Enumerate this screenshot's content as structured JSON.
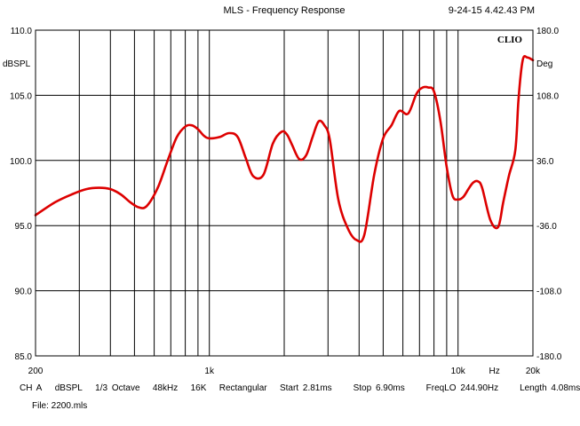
{
  "header": {
    "title": "MLS - Frequency Response",
    "timestamp": "9-24-15 4.42.43 PM"
  },
  "chart_data": {
    "type": "line",
    "brand": "CLIO",
    "x_scale": "log",
    "xlim": [
      200,
      20000
    ],
    "ylim_left": [
      85.0,
      110.0
    ],
    "ylim_right": [
      -180.0,
      180.0
    ],
    "left_unit": "dBSPL",
    "right_unit": "Deg",
    "x_unit": "Hz",
    "grid": true,
    "left_tick_labels": [
      "110.0",
      "105.0",
      "100.0",
      "95.0",
      "90.0",
      "85.0"
    ],
    "right_tick_labels": [
      "180.0",
      "108.0",
      "36.0",
      "-36.0",
      "-108.0",
      "-180.0"
    ],
    "x_tick_labels": [
      {
        "value": 200,
        "label": "200"
      },
      {
        "value": 1000,
        "label": "1k"
      },
      {
        "value": 10000,
        "label": "10k"
      },
      {
        "value": 20000,
        "label": "20k"
      }
    ],
    "series": [
      {
        "color": "#dd0000",
        "x": [
          200,
          240,
          280,
          320,
          360,
          400,
          440,
          480,
          520,
          560,
          620,
          680,
          740,
          800,
          850,
          900,
          950,
          1000,
          1100,
          1200,
          1300,
          1400,
          1500,
          1650,
          1800,
          1950,
          2050,
          2150,
          2300,
          2450,
          2600,
          2750,
          2900,
          3050,
          3300,
          3600,
          3900,
          4200,
          4600,
          5000,
          5400,
          5800,
          6300,
          6800,
          7200,
          7600,
          8000,
          8500,
          9000,
          9500,
          10000,
          10500,
          11000,
          11500,
          12000,
          12500,
          13500,
          14500,
          15200,
          16000,
          17000,
          17500,
          18200,
          19000,
          20000
        ],
        "y": [
          95.8,
          96.8,
          97.4,
          97.8,
          97.9,
          97.8,
          97.4,
          96.8,
          96.4,
          96.5,
          97.9,
          100.0,
          101.8,
          102.6,
          102.7,
          102.4,
          101.9,
          101.7,
          101.8,
          102.1,
          101.8,
          100.2,
          98.8,
          98.9,
          101.3,
          102.2,
          102.0,
          101.2,
          100.1,
          100.4,
          101.8,
          103.0,
          102.7,
          101.6,
          97.0,
          94.8,
          93.9,
          94.3,
          98.9,
          101.7,
          102.7,
          103.8,
          103.6,
          105.1,
          105.6,
          105.6,
          105.3,
          103.0,
          99.5,
          97.3,
          97.0,
          97.2,
          97.8,
          98.3,
          98.4,
          97.9,
          95.4,
          94.9,
          96.8,
          98.8,
          100.8,
          104.7,
          107.7,
          107.9,
          107.7
        ]
      }
    ]
  },
  "footer": {
    "channel": "CH A",
    "unit": "dBSPL",
    "smoothing": "1/3 Octave",
    "sample_rate": "48kHz",
    "size": "16K",
    "window": "Rectangular",
    "start": "Start 2.81ms",
    "stop": "Stop 6.90ms",
    "freqlo": "FreqLO 244.90Hz",
    "length": "Length 4.08ms",
    "file": "File:  2200.mls"
  }
}
